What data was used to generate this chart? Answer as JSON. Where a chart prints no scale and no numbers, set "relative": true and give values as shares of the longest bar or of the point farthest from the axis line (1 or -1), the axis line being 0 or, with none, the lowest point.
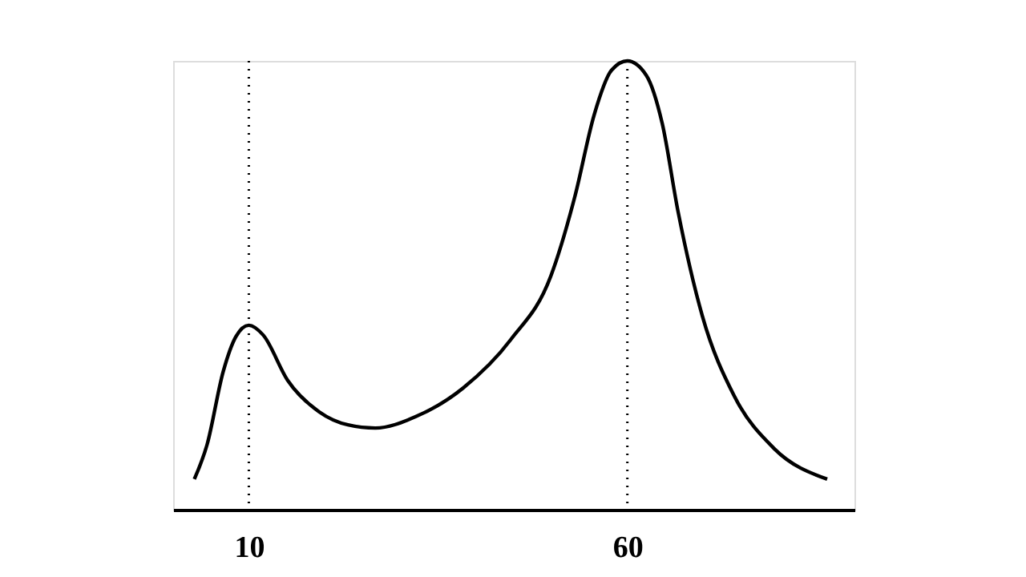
{
  "chart_data": {
    "type": "line",
    "relative": true,
    "xlim": [
      0,
      90
    ],
    "xticks": [
      10,
      60
    ],
    "grid": false,
    "marker": "none",
    "line_style": "solid",
    "x": [
      2.8,
      4.5,
      6.6,
      8.3,
      10,
      11.9,
      15.1,
      19.3,
      23.1,
      26.7,
      32,
      38.3,
      44.6,
      49.9,
      53.1,
      55.6,
      57.9,
      60,
      62.5,
      64.6,
      66.7,
      69.9,
      74.1,
      79.4,
      86.4
    ],
    "series": [
      {
        "color": "#000000",
        "values": [
          0.068,
          0.146,
          0.307,
          0.386,
          0.411,
          0.389,
          0.289,
          0.218,
          0.189,
          0.182,
          0.207,
          0.271,
          0.379,
          0.521,
          0.7,
          0.879,
          0.979,
          1,
          0.968,
          0.861,
          0.664,
          0.432,
          0.254,
          0.136,
          0.068
        ]
      }
    ],
    "ref_lines": [
      {
        "axis": "x",
        "value": 10,
        "label": null,
        "line_style": "dotted",
        "color": "#000000"
      },
      {
        "axis": "x",
        "value": 60,
        "label": null,
        "line_style": "dotted",
        "color": "#000000"
      }
    ]
  }
}
